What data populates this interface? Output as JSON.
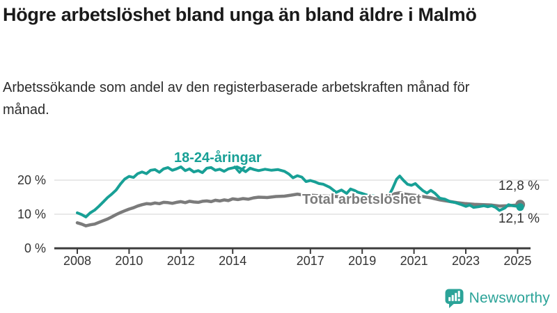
{
  "header": {
    "title": "Högre arbetslöshet bland unga än bland äldre i Malmö",
    "subtitle": "Arbetssökande som andel av den registerbaserade arbetskraften månad för månad."
  },
  "branding": {
    "logo_text": "Newsworthy",
    "logo_color": "#2BA398"
  },
  "chart_data": {
    "type": "line",
    "title": "Högre arbetslöshet bland unga än bland äldre i Malmö",
    "subtitle": "Arbetssökande som andel av den registerbaserade arbetskraften månad för månad.",
    "grid": true,
    "legend_position": "inline-labels",
    "x_axis": {
      "ticks": [
        2008,
        2010,
        2012,
        2014,
        2017,
        2019,
        2021,
        2023,
        2025
      ],
      "range": [
        2007.6,
        2025.7
      ]
    },
    "y_axis": {
      "labels": [
        "0 %",
        "10 %",
        "20 %"
      ],
      "values": [
        0,
        10,
        20
      ],
      "unit": "%",
      "range": [
        0,
        26
      ]
    },
    "series": [
      {
        "name": "18-24-åringar",
        "color": "#18A096",
        "end_label": "12,1 %",
        "end_value": 12.1,
        "points": [
          [
            2008.0,
            10.4
          ],
          [
            2008.17,
            9.9
          ],
          [
            2008.33,
            9.2
          ],
          [
            2008.5,
            10.4
          ],
          [
            2008.67,
            11.2
          ],
          [
            2008.83,
            12.3
          ],
          [
            2009.0,
            13.6
          ],
          [
            2009.17,
            14.9
          ],
          [
            2009.33,
            15.9
          ],
          [
            2009.5,
            17.1
          ],
          [
            2009.67,
            18.9
          ],
          [
            2009.83,
            20.3
          ],
          [
            2010.0,
            21.1
          ],
          [
            2010.17,
            20.8
          ],
          [
            2010.33,
            21.9
          ],
          [
            2010.5,
            22.4
          ],
          [
            2010.67,
            21.9
          ],
          [
            2010.83,
            22.9
          ],
          [
            2011.0,
            23.1
          ],
          [
            2011.17,
            22.3
          ],
          [
            2011.33,
            23.3
          ],
          [
            2011.5,
            23.7
          ],
          [
            2011.67,
            22.9
          ],
          [
            2011.83,
            23.3
          ],
          [
            2012.0,
            23.9
          ],
          [
            2012.17,
            22.8
          ],
          [
            2012.33,
            23.3
          ],
          [
            2012.5,
            22.4
          ],
          [
            2012.67,
            22.8
          ],
          [
            2012.83,
            22.2
          ],
          [
            2013.0,
            23.5
          ],
          [
            2013.17,
            23.7
          ],
          [
            2013.33,
            22.9
          ],
          [
            2013.5,
            23.2
          ],
          [
            2013.67,
            22.6
          ],
          [
            2013.83,
            23.3
          ],
          [
            2014.0,
            23.6
          ],
          [
            2014.17,
            23.9
          ],
          [
            2014.33,
            23.3
          ],
          [
            2014.5,
            22.5
          ],
          [
            2014.67,
            23.5
          ],
          [
            2014.83,
            23.1
          ],
          [
            2015.0,
            22.8
          ],
          [
            2015.25,
            23.2
          ],
          [
            2015.5,
            22.9
          ],
          [
            2015.75,
            23.1
          ],
          [
            2016.0,
            22.6
          ],
          [
            2016.17,
            21.8
          ],
          [
            2016.33,
            20.7
          ],
          [
            2016.5,
            21.3
          ],
          [
            2016.67,
            20.9
          ],
          [
            2016.83,
            19.6
          ],
          [
            2017.0,
            19.9
          ],
          [
            2017.17,
            19.5
          ],
          [
            2017.33,
            19.0
          ],
          [
            2017.5,
            18.8
          ],
          [
            2017.75,
            17.9
          ],
          [
            2018.0,
            16.4
          ],
          [
            2018.2,
            17.1
          ],
          [
            2018.4,
            16.1
          ],
          [
            2018.55,
            17.4
          ],
          [
            2018.7,
            17.0
          ],
          [
            2018.85,
            16.4
          ],
          [
            2019.0,
            16.1
          ],
          [
            2019.2,
            15.6
          ],
          [
            2019.4,
            15.4
          ],
          [
            2019.6,
            15.2
          ],
          [
            2019.8,
            14.8
          ],
          [
            2020.0,
            15.0
          ],
          [
            2020.17,
            17.5
          ],
          [
            2020.33,
            20.3
          ],
          [
            2020.45,
            21.2
          ],
          [
            2020.6,
            19.9
          ],
          [
            2020.75,
            18.8
          ],
          [
            2020.9,
            18.5
          ],
          [
            2021.05,
            19.0
          ],
          [
            2021.2,
            17.9
          ],
          [
            2021.35,
            16.9
          ],
          [
            2021.5,
            16.2
          ],
          [
            2021.65,
            17.0
          ],
          [
            2021.8,
            16.2
          ],
          [
            2022.0,
            14.7
          ],
          [
            2022.2,
            14.4
          ],
          [
            2022.4,
            13.7
          ],
          [
            2022.6,
            13.4
          ],
          [
            2022.8,
            12.9
          ],
          [
            2023.0,
            12.3
          ],
          [
            2023.15,
            12.7
          ],
          [
            2023.3,
            12.0
          ],
          [
            2023.5,
            12.2
          ],
          [
            2023.7,
            12.5
          ],
          [
            2023.85,
            12.2
          ],
          [
            2024.0,
            12.5
          ],
          [
            2024.15,
            12.0
          ],
          [
            2024.3,
            11.1
          ],
          [
            2024.5,
            11.8
          ],
          [
            2024.65,
            12.8
          ],
          [
            2024.8,
            12.5
          ],
          [
            2025.0,
            12.3
          ],
          [
            2025.1,
            12.1
          ]
        ]
      },
      {
        "name": "Total arbetslöshet",
        "color": "#7b7b7b",
        "end_label": "12,8 %",
        "end_value": 12.8,
        "points": [
          [
            2008.0,
            7.5
          ],
          [
            2008.17,
            7.1
          ],
          [
            2008.33,
            6.6
          ],
          [
            2008.5,
            6.9
          ],
          [
            2008.67,
            7.1
          ],
          [
            2008.83,
            7.6
          ],
          [
            2009.0,
            8.1
          ],
          [
            2009.17,
            8.6
          ],
          [
            2009.33,
            9.2
          ],
          [
            2009.5,
            9.9
          ],
          [
            2009.67,
            10.5
          ],
          [
            2009.83,
            11.0
          ],
          [
            2010.0,
            11.5
          ],
          [
            2010.17,
            11.9
          ],
          [
            2010.33,
            12.4
          ],
          [
            2010.5,
            12.8
          ],
          [
            2010.67,
            13.1
          ],
          [
            2010.83,
            13.0
          ],
          [
            2011.0,
            13.3
          ],
          [
            2011.17,
            13.1
          ],
          [
            2011.33,
            13.5
          ],
          [
            2011.5,
            13.4
          ],
          [
            2011.67,
            13.2
          ],
          [
            2011.83,
            13.5
          ],
          [
            2012.0,
            13.7
          ],
          [
            2012.17,
            13.4
          ],
          [
            2012.33,
            13.8
          ],
          [
            2012.5,
            13.6
          ],
          [
            2012.67,
            13.5
          ],
          [
            2012.83,
            13.8
          ],
          [
            2013.0,
            13.9
          ],
          [
            2013.17,
            13.7
          ],
          [
            2013.33,
            14.1
          ],
          [
            2013.5,
            13.9
          ],
          [
            2013.67,
            14.2
          ],
          [
            2013.83,
            14.0
          ],
          [
            2014.0,
            14.5
          ],
          [
            2014.2,
            14.3
          ],
          [
            2014.4,
            14.6
          ],
          [
            2014.6,
            14.4
          ],
          [
            2014.8,
            14.8
          ],
          [
            2015.0,
            15.0
          ],
          [
            2015.33,
            14.9
          ],
          [
            2015.67,
            15.2
          ],
          [
            2016.0,
            15.3
          ],
          [
            2016.25,
            15.6
          ],
          [
            2016.5,
            15.9
          ],
          [
            2016.75,
            15.6
          ],
          [
            2017.0,
            15.6
          ],
          [
            2017.33,
            15.4
          ],
          [
            2017.67,
            15.3
          ],
          [
            2018.0,
            15.2
          ],
          [
            2018.33,
            15.0
          ],
          [
            2018.67,
            14.9
          ],
          [
            2019.0,
            14.7
          ],
          [
            2019.33,
            14.6
          ],
          [
            2019.67,
            14.4
          ],
          [
            2020.0,
            14.8
          ],
          [
            2020.25,
            16.0
          ],
          [
            2020.45,
            16.3
          ],
          [
            2020.65,
            15.9
          ],
          [
            2020.85,
            15.7
          ],
          [
            2021.0,
            15.6
          ],
          [
            2021.33,
            15.2
          ],
          [
            2021.67,
            14.8
          ],
          [
            2022.0,
            14.2
          ],
          [
            2022.33,
            13.8
          ],
          [
            2022.67,
            13.4
          ],
          [
            2023.0,
            13.1
          ],
          [
            2023.33,
            12.9
          ],
          [
            2023.67,
            12.8
          ],
          [
            2024.0,
            12.7
          ],
          [
            2024.3,
            12.4
          ],
          [
            2024.6,
            12.5
          ],
          [
            2025.0,
            12.7
          ],
          [
            2025.1,
            12.8
          ]
        ]
      }
    ]
  }
}
